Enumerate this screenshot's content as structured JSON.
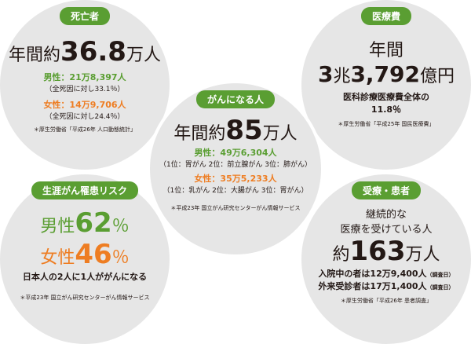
{
  "deaths": {
    "title": "死亡者",
    "headline": {
      "prefix": "年間約",
      "number": "36.8",
      "suffix": "万人"
    },
    "male": "男性：21万8,397人",
    "male_note": "（全死因に対し33.1％）",
    "female": "女性：14万9,706人",
    "female_note": "（全死因に対し24.4％）",
    "source": "＊厚生労働省「平成26年 人口動態統計」"
  },
  "medical_cost": {
    "title": "医療費",
    "line1": "年間",
    "headline": {
      "trillion": "3",
      "trillion_unit": "兆",
      "hundred_million": "3,792",
      "hundred_million_unit": "億円"
    },
    "desc": "医科診療医療費全体の",
    "ratio": "11.8％",
    "source": "＊厚生労働省「平成25年 国民医療費」"
  },
  "cancer_cases": {
    "title": "がんになる人",
    "headline": {
      "prefix": "年間約",
      "number": "85",
      "suffix": "万人"
    },
    "male": "男性：49万6,304人",
    "male_rank": "（1位：胃がん 2位：前立腺がん 3位：肺がん）",
    "female": "女性：35万5,233人",
    "female_rank": "（1位：乳がん 2位：大腸がん 3位：胃がん）",
    "source": "＊平成23年 国立がん研究センターがん情報サービス"
  },
  "lifetime_risk": {
    "title": "生涯がん罹患リスク",
    "male_label": "男性",
    "male_value": "62",
    "male_unit": "％",
    "female_label": "女性",
    "female_value": "46",
    "female_unit": "％",
    "summary": "日本人の2人に1人ががんになる",
    "source": "＊平成23年 国立がん研究センターがん情報サービス"
  },
  "patients": {
    "title": "受療・患者",
    "line1": "継続的な",
    "line2": "医療を受けている人",
    "headline": {
      "prefix": "約",
      "number": "163",
      "suffix": "万人"
    },
    "inpatient": "入院中の者は12万9,400人",
    "inpatient_note": "（調査日）",
    "outpatient": "外来受診者は17万1,400人",
    "outpatient_note": "（調査日）",
    "source": "＊厚生労働省「平成26年 患者調査」"
  }
}
